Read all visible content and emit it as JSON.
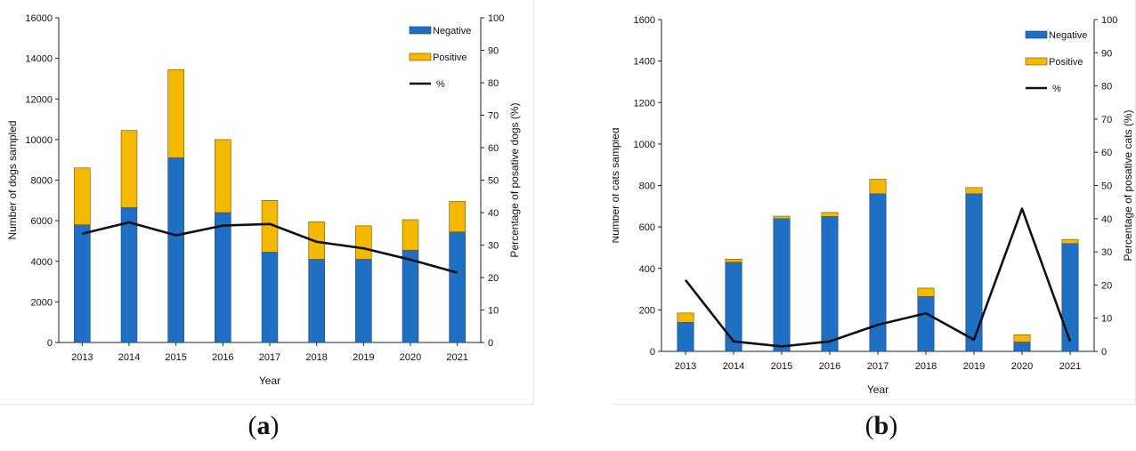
{
  "captions": {
    "a_open": "(",
    "a_letter": "a",
    "a_close": ")",
    "b_open": "(",
    "b_letter": "b",
    "b_close": ")"
  },
  "colors": {
    "negative": "#1F6FC5",
    "positive": "#F5B800",
    "percent_line": "#111111"
  },
  "chart_data": [
    {
      "type": "bar",
      "stacked": true,
      "categories": [
        "2013",
        "2014",
        "2015",
        "2016",
        "2017",
        "2018",
        "2019",
        "2020",
        "2021"
      ],
      "series": [
        {
          "name": "Negative",
          "values": [
            5800,
            6650,
            9100,
            6400,
            4450,
            4100,
            4100,
            4550,
            5450
          ]
        },
        {
          "name": "Positive",
          "values": [
            2800,
            3800,
            4350,
            3600,
            2550,
            1850,
            1650,
            1500,
            1500
          ]
        }
      ],
      "line_series": {
        "name": "%",
        "axis": "right",
        "values": [
          33.5,
          37,
          33,
          36,
          36.5,
          31,
          29,
          25.5,
          21.5
        ]
      },
      "xlabel": "Year",
      "ylabel": "Number  of dogs sampled",
      "ylabel_right": "Percentage of posative dogs (%)",
      "ylim": [
        0,
        16000
      ],
      "yticks": [
        "0",
        "2000",
        "4000",
        "6000",
        "8000",
        "10000",
        "12000",
        "14000",
        "16000"
      ],
      "ylim_right": [
        0,
        100
      ],
      "yticks_right": [
        "0",
        "10",
        "20",
        "30",
        "40",
        "50",
        "60",
        "70",
        "80",
        "90",
        "100"
      ],
      "legend": [
        "Negative",
        "Positive",
        "%"
      ],
      "legend_position": "top-right",
      "grid": false
    },
    {
      "type": "bar",
      "stacked": true,
      "categories": [
        "2013",
        "2014",
        "2015",
        "2016",
        "2017",
        "2018",
        "2019",
        "2020",
        "2021"
      ],
      "series": [
        {
          "name": "Negative",
          "values": [
            140,
            430,
            640,
            650,
            760,
            265,
            760,
            45,
            520
          ]
        },
        {
          "name": "Positive",
          "values": [
            45,
            15,
            12,
            20,
            70,
            40,
            30,
            35,
            20
          ]
        }
      ],
      "line_series": {
        "name": "%",
        "axis": "right",
        "values": [
          21.5,
          3,
          1.5,
          3,
          8,
          11.5,
          3.5,
          43,
          3
        ]
      },
      "xlabel": "Year",
      "ylabel": "Number  of cats sampled",
      "ylabel_right": "Percentage of posative cats (%)",
      "ylim": [
        0,
        1600
      ],
      "yticks": [
        "0",
        "200",
        "400",
        "600",
        "800",
        "1000",
        "1200",
        "1400",
        "1600"
      ],
      "ylim_right": [
        0,
        100
      ],
      "yticks_right": [
        "0",
        "10",
        "20",
        "30",
        "40",
        "50",
        "60",
        "70",
        "80",
        "90",
        "100"
      ],
      "legend": [
        "Negative",
        "Positive",
        "%"
      ],
      "legend_position": "top-right",
      "grid": false
    }
  ]
}
